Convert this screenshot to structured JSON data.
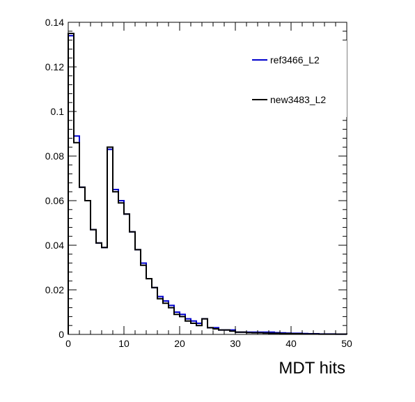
{
  "chart_data": {
    "type": "histogram",
    "title": "",
    "xlabel": "MDT hits",
    "ylabel": "",
    "xlim": [
      0,
      50
    ],
    "ylim": [
      0,
      0.14
    ],
    "bin_width": 1,
    "x_ticks": [
      0,
      10,
      20,
      30,
      40,
      50
    ],
    "x_tick_labels": [
      "0",
      "10",
      "20",
      "30",
      "40",
      "50"
    ],
    "y_ticks": [
      0,
      0.02,
      0.04,
      0.06,
      0.08,
      0.1,
      0.12,
      0.14
    ],
    "y_tick_labels": [
      "0",
      "0.02",
      "0.04",
      "0.06",
      "0.08",
      "0.1",
      "0.12",
      "0.14"
    ],
    "grid": false,
    "legend_position": "top-right",
    "series": [
      {
        "name": "ref3466_L2",
        "color": "#0000cc",
        "values": [
          0.134,
          0.089,
          0.066,
          0.06,
          0.047,
          0.041,
          0.039,
          0.083,
          0.065,
          0.06,
          0.054,
          0.046,
          0.038,
          0.032,
          0.025,
          0.021,
          0.017,
          0.015,
          0.013,
          0.01,
          0.009,
          0.007,
          0.006,
          0.005,
          0.007,
          0.003,
          0.003,
          0.002,
          0.002,
          0.002,
          0.001,
          0.001,
          0.001,
          0.001,
          0.001,
          0.001,
          0.001,
          0.0008,
          0.0007,
          0.0006,
          0.0005,
          0.0005,
          0.0004,
          0.0003,
          0.0003,
          0.0002,
          0.0002,
          0.0002,
          0.0001,
          0.0001
        ]
      },
      {
        "name": "new3483_L2",
        "color": "#000000",
        "values": [
          0.135,
          0.086,
          0.066,
          0.06,
          0.047,
          0.041,
          0.039,
          0.084,
          0.064,
          0.059,
          0.054,
          0.046,
          0.038,
          0.031,
          0.025,
          0.021,
          0.016,
          0.014,
          0.012,
          0.009,
          0.008,
          0.006,
          0.005,
          0.004,
          0.007,
          0.003,
          0.0025,
          0.002,
          0.002,
          0.0015,
          0.001,
          0.001,
          0.0008,
          0.0007,
          0.0007,
          0.0006,
          0.0005,
          0.0005,
          0.0004,
          0.0004,
          0.0003,
          0.0003,
          0.0002,
          0.0002,
          0.0002,
          0.0001,
          0.0001,
          0.0001,
          0.0001,
          0.0001
        ]
      }
    ]
  }
}
